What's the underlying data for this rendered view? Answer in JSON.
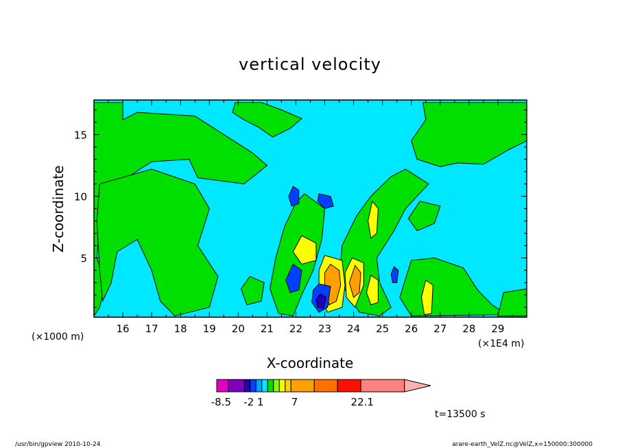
{
  "chart_data": {
    "type": "heatmap",
    "title": "vertical velocity",
    "xlabel": "X-coordinate",
    "ylabel": "Z-coordinate",
    "x_scale_note": "(×1000 m)",
    "x_secondary_note": "(×1E4 m)",
    "x_ticks": [
      "16",
      "17",
      "18",
      "19",
      "20",
      "21",
      "22",
      "23",
      "24",
      "25",
      "26",
      "27",
      "28",
      "29"
    ],
    "x_tick_values": [
      16,
      17,
      18,
      19,
      20,
      21,
      22,
      23,
      24,
      25,
      26,
      27,
      28,
      29
    ],
    "xlim": [
      15,
      30
    ],
    "y_ticks": [
      "5",
      "10",
      "15"
    ],
    "y_tick_values": [
      5,
      10,
      15
    ],
    "ylim": [
      0.2,
      17.8
    ],
    "time_label": "t=13500 s",
    "colorbar": {
      "labels": [
        "-8.5",
        "-2",
        "1",
        "7",
        "22.1"
      ],
      "label_values": [
        -8.5,
        -2,
        1,
        7,
        22.1
      ],
      "colors": [
        "#e000c0",
        "#8000c0",
        "#2000c0",
        "#0040ff",
        "#00a0ff",
        "#00e8ff",
        "#00e000",
        "#80ff00",
        "#ffff00",
        "#ffd000",
        "#ffa000",
        "#ff7000",
        "#ff1000",
        "#ff8080",
        "#ffb0b0"
      ],
      "widths": [
        1.6,
        2.2,
        0.8,
        0.8,
        0.8,
        0.8,
        0.8,
        0.8,
        0.8,
        0.8,
        3.2,
        3.2,
        3.2,
        6.0,
        3.6
      ]
    },
    "field": {
      "background_color": "#00e8ff",
      "regions": [
        {
          "level": "positive_weak",
          "color": "#00e000",
          "points": [
            [
              15,
              0.3
            ],
            [
              15,
              17.6
            ],
            [
              16.0,
              17.6
            ],
            [
              16.0,
              16.2
            ],
            [
              16.5,
              16.8
            ],
            [
              18.5,
              16.5
            ],
            [
              19.5,
              15.0
            ],
            [
              20.5,
              13.5
            ],
            [
              21.0,
              12.5
            ],
            [
              20.2,
              11.0
            ],
            [
              18.6,
              11.5
            ],
            [
              18.3,
              13.0
            ],
            [
              17.0,
              12.8
            ],
            [
              15.8,
              11.0
            ],
            [
              15.5,
              9.5
            ],
            [
              15.2,
              8.0
            ],
            [
              15.1,
              5.0
            ],
            [
              15.4,
              3.0
            ],
            [
              15.2,
              1.0
            ],
            [
              15.0,
              0.3
            ]
          ]
        },
        {
          "level": "positive_weak",
          "color": "#00e000",
          "points": [
            [
              15.2,
              11.0
            ],
            [
              17.0,
              12.2
            ],
            [
              18.5,
              11.0
            ],
            [
              19.0,
              9.0
            ],
            [
              18.6,
              6.0
            ],
            [
              19.3,
              3.5
            ],
            [
              19.0,
              1.0
            ],
            [
              17.8,
              0.3
            ],
            [
              17.3,
              1.5
            ],
            [
              17.0,
              4.0
            ],
            [
              16.5,
              6.5
            ],
            [
              15.8,
              5.5
            ],
            [
              15.6,
              3.0
            ],
            [
              15.3,
              1.5
            ],
            [
              15.2,
              4.0
            ],
            [
              15.1,
              8.0
            ]
          ]
        },
        {
          "level": "positive_weak",
          "color": "#00e000",
          "points": [
            [
              19.9,
              17.6
            ],
            [
              20.8,
              17.6
            ],
            [
              21.5,
              17.0
            ],
            [
              22.2,
              16.3
            ],
            [
              21.8,
              15.5
            ],
            [
              21.2,
              14.8
            ],
            [
              20.7,
              15.6
            ],
            [
              20.2,
              16.2
            ],
            [
              19.8,
              16.8
            ]
          ]
        },
        {
          "level": "positive_weak",
          "color": "#00e000",
          "points": [
            [
              26.4,
              17.6
            ],
            [
              30,
              17.6
            ],
            [
              30,
              14.5
            ],
            [
              29.4,
              13.8
            ],
            [
              28.5,
              12.6
            ],
            [
              27.6,
              12.7
            ],
            [
              27.0,
              12.4
            ],
            [
              26.2,
              13.0
            ],
            [
              26.0,
              14.5
            ],
            [
              26.5,
              16.2
            ]
          ]
        },
        {
          "level": "positive_weak",
          "color": "#00e000",
          "points": [
            [
              25.8,
              12.2
            ],
            [
              26.6,
              11.0
            ],
            [
              25.8,
              9.0
            ],
            [
              25.4,
              7.2
            ],
            [
              24.8,
              5.0
            ],
            [
              24.9,
              3.0
            ],
            [
              25.3,
              1.0
            ],
            [
              24.9,
              0.3
            ],
            [
              24.2,
              0.6
            ],
            [
              23.5,
              3.2
            ],
            [
              23.6,
              6.0
            ],
            [
              24.1,
              8.4
            ],
            [
              24.6,
              10.0
            ],
            [
              25.3,
              11.6
            ]
          ]
        },
        {
          "level": "positive_weak",
          "color": "#00e000",
          "points": [
            [
              22.3,
              10.2
            ],
            [
              23.0,
              9.0
            ],
            [
              22.9,
              6.5
            ],
            [
              22.6,
              4.0
            ],
            [
              22.2,
              2.0
            ],
            [
              21.9,
              0.3
            ],
            [
              21.4,
              0.5
            ],
            [
              21.1,
              2.5
            ],
            [
              21.3,
              5.0
            ],
            [
              21.6,
              7.5
            ],
            [
              22.0,
              9.5
            ]
          ]
        },
        {
          "level": "positive_weak",
          "color": "#00e000",
          "points": [
            [
              26.3,
              9.6
            ],
            [
              27.0,
              9.2
            ],
            [
              26.8,
              7.8
            ],
            [
              26.2,
              7.2
            ],
            [
              25.9,
              8.2
            ]
          ]
        },
        {
          "level": "positive_weak",
          "color": "#00e000",
          "points": [
            [
              26.0,
              4.8
            ],
            [
              26.8,
              5.0
            ],
            [
              27.8,
              4.2
            ],
            [
              28.3,
              2.4
            ],
            [
              28.8,
              1.2
            ],
            [
              29.3,
              0.4
            ],
            [
              26.0,
              0.3
            ],
            [
              25.6,
              1.8
            ]
          ]
        },
        {
          "level": "positive_weak",
          "color": "#00e000",
          "points": [
            [
              29.2,
              2.2
            ],
            [
              30,
              2.5
            ],
            [
              30,
              0.3
            ],
            [
              29.0,
              0.3
            ]
          ]
        },
        {
          "level": "positive_weak",
          "color": "#00e000",
          "points": [
            [
              20.4,
              3.5
            ],
            [
              20.9,
              3.0
            ],
            [
              20.8,
              1.5
            ],
            [
              20.3,
              1.2
            ],
            [
              20.1,
              2.5
            ]
          ]
        },
        {
          "level": "positive",
          "color": "#ffff00",
          "points": [
            [
              22.2,
              6.8
            ],
            [
              22.7,
              6.2
            ],
            [
              22.7,
              4.8
            ],
            [
              22.2,
              4.5
            ],
            [
              21.9,
              5.5
            ]
          ]
        },
        {
          "level": "positive",
          "color": "#ffff00",
          "points": [
            [
              23.0,
              5.2
            ],
            [
              23.6,
              4.8
            ],
            [
              23.7,
              2.8
            ],
            [
              23.6,
              1.0
            ],
            [
              23.1,
              0.6
            ],
            [
              22.8,
              2.0
            ],
            [
              22.8,
              4.0
            ]
          ]
        },
        {
          "level": "positive",
          "color": "#ffff00",
          "points": [
            [
              23.95,
              5.0
            ],
            [
              24.35,
              4.6
            ],
            [
              24.35,
              2.8
            ],
            [
              24.05,
              1.0
            ],
            [
              23.75,
              1.8
            ],
            [
              23.7,
              3.8
            ]
          ]
        },
        {
          "level": "positive",
          "color": "#ffff00",
          "points": [
            [
              24.65,
              9.6
            ],
            [
              24.85,
              9.0
            ],
            [
              24.8,
              7.0
            ],
            [
              24.6,
              6.6
            ],
            [
              24.5,
              8.0
            ]
          ]
        },
        {
          "level": "positive",
          "color": "#ffff00",
          "points": [
            [
              24.6,
              3.6
            ],
            [
              24.85,
              3.2
            ],
            [
              24.85,
              1.4
            ],
            [
              24.6,
              1.2
            ],
            [
              24.45,
              2.2
            ]
          ]
        },
        {
          "level": "positive",
          "color": "#ffff00",
          "points": [
            [
              26.5,
              3.2
            ],
            [
              26.75,
              2.8
            ],
            [
              26.7,
              0.5
            ],
            [
              26.45,
              0.4
            ],
            [
              26.35,
              1.8
            ]
          ]
        },
        {
          "level": "positive_strong",
          "color": "#ffa000",
          "points": [
            [
              23.2,
              4.5
            ],
            [
              23.5,
              4.0
            ],
            [
              23.55,
              2.8
            ],
            [
              23.4,
              1.5
            ],
            [
              23.15,
              1.2
            ],
            [
              23.0,
              2.5
            ],
            [
              23.0,
              3.8
            ]
          ]
        },
        {
          "level": "positive_strong",
          "color": "#ffa000",
          "points": [
            [
              24.05,
              4.4
            ],
            [
              24.25,
              3.8
            ],
            [
              24.2,
              2.2
            ],
            [
              24.0,
              1.8
            ],
            [
              23.85,
              3.0
            ]
          ]
        },
        {
          "level": "negative",
          "color": "#0040ff",
          "points": [
            [
              22.8,
              2.9
            ],
            [
              23.2,
              2.7
            ],
            [
              23.1,
              1.0
            ],
            [
              22.8,
              0.6
            ],
            [
              22.55,
              1.4
            ],
            [
              22.6,
              2.4
            ]
          ]
        },
        {
          "level": "negative",
          "color": "#0040ff",
          "points": [
            [
              21.9,
              4.5
            ],
            [
              22.2,
              4.0
            ],
            [
              22.1,
              2.4
            ],
            [
              21.8,
              2.2
            ],
            [
              21.65,
              3.2
            ]
          ]
        },
        {
          "level": "negative",
          "color": "#0040ff",
          "points": [
            [
              22.8,
              10.2
            ],
            [
              23.2,
              10.0
            ],
            [
              23.3,
              9.2
            ],
            [
              23.0,
              9.0
            ],
            [
              22.75,
              9.6
            ]
          ]
        },
        {
          "level": "negative",
          "color": "#0040ff",
          "points": [
            [
              21.9,
              10.8
            ],
            [
              22.1,
              10.5
            ],
            [
              22.1,
              9.4
            ],
            [
              21.85,
              9.2
            ],
            [
              21.75,
              10.0
            ]
          ]
        },
        {
          "level": "negative",
          "color": "#0040ff",
          "points": [
            [
              25.4,
              4.3
            ],
            [
              25.55,
              4.0
            ],
            [
              25.5,
              3.0
            ],
            [
              25.35,
              3.0
            ],
            [
              25.3,
              3.7
            ]
          ]
        },
        {
          "level": "negative_strong",
          "color": "#2000c0",
          "points": [
            [
              22.85,
              2.1
            ],
            [
              23.05,
              1.8
            ],
            [
              22.95,
              0.9
            ],
            [
              22.75,
              1.0
            ],
            [
              22.7,
              1.6
            ]
          ]
        }
      ]
    }
  },
  "footer": {
    "left": "/usr/bin/gpview  2010-10-24",
    "right": "arare-earth_VelZ.nc@VelZ,x=150000:300000"
  }
}
